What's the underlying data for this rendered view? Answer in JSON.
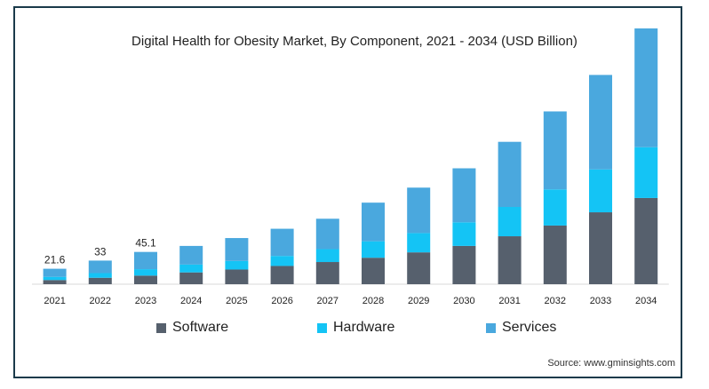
{
  "chart_data": {
    "type": "bar",
    "stacked": true,
    "title": "Digital Health for Obesity Market, By Component, 2021 - 2034 (USD Billion)",
    "categories": [
      "2021",
      "2022",
      "2023",
      "2024",
      "2025",
      "2026",
      "2027",
      "2028",
      "2029",
      "2030",
      "2031",
      "2032",
      "2033",
      "2034"
    ],
    "series": [
      {
        "name": "Software",
        "color": "#56606d",
        "values": [
          5.8,
          9.0,
          12.0,
          16.5,
          20.5,
          25.5,
          31.0,
          37.0,
          44.5,
          53.5,
          67.0,
          82.0,
          100.5,
          120.5
        ]
      },
      {
        "name": "Hardware",
        "color": "#14c4f5",
        "values": [
          4.5,
          6.5,
          9.0,
          11.0,
          12.0,
          14.0,
          18.0,
          23.0,
          27.0,
          33.0,
          41.0,
          50.5,
          60.0,
          71.0
        ]
      },
      {
        "name": "Services",
        "color": "#4aa8de",
        "values": [
          11.3,
          17.5,
          24.1,
          26.0,
          32.0,
          38.0,
          42.5,
          54.0,
          63.5,
          75.5,
          91.0,
          109.0,
          132.0,
          166.0
        ]
      }
    ],
    "data_labels": [
      {
        "category": "2021",
        "text": "21.6"
      },
      {
        "category": "2022",
        "text": "33"
      },
      {
        "category": "2023",
        "text": "45.1"
      }
    ],
    "ylim": [
      0,
      360
    ],
    "grid": false,
    "legend": "bottom"
  },
  "source": "Source: www.gminsights.com"
}
